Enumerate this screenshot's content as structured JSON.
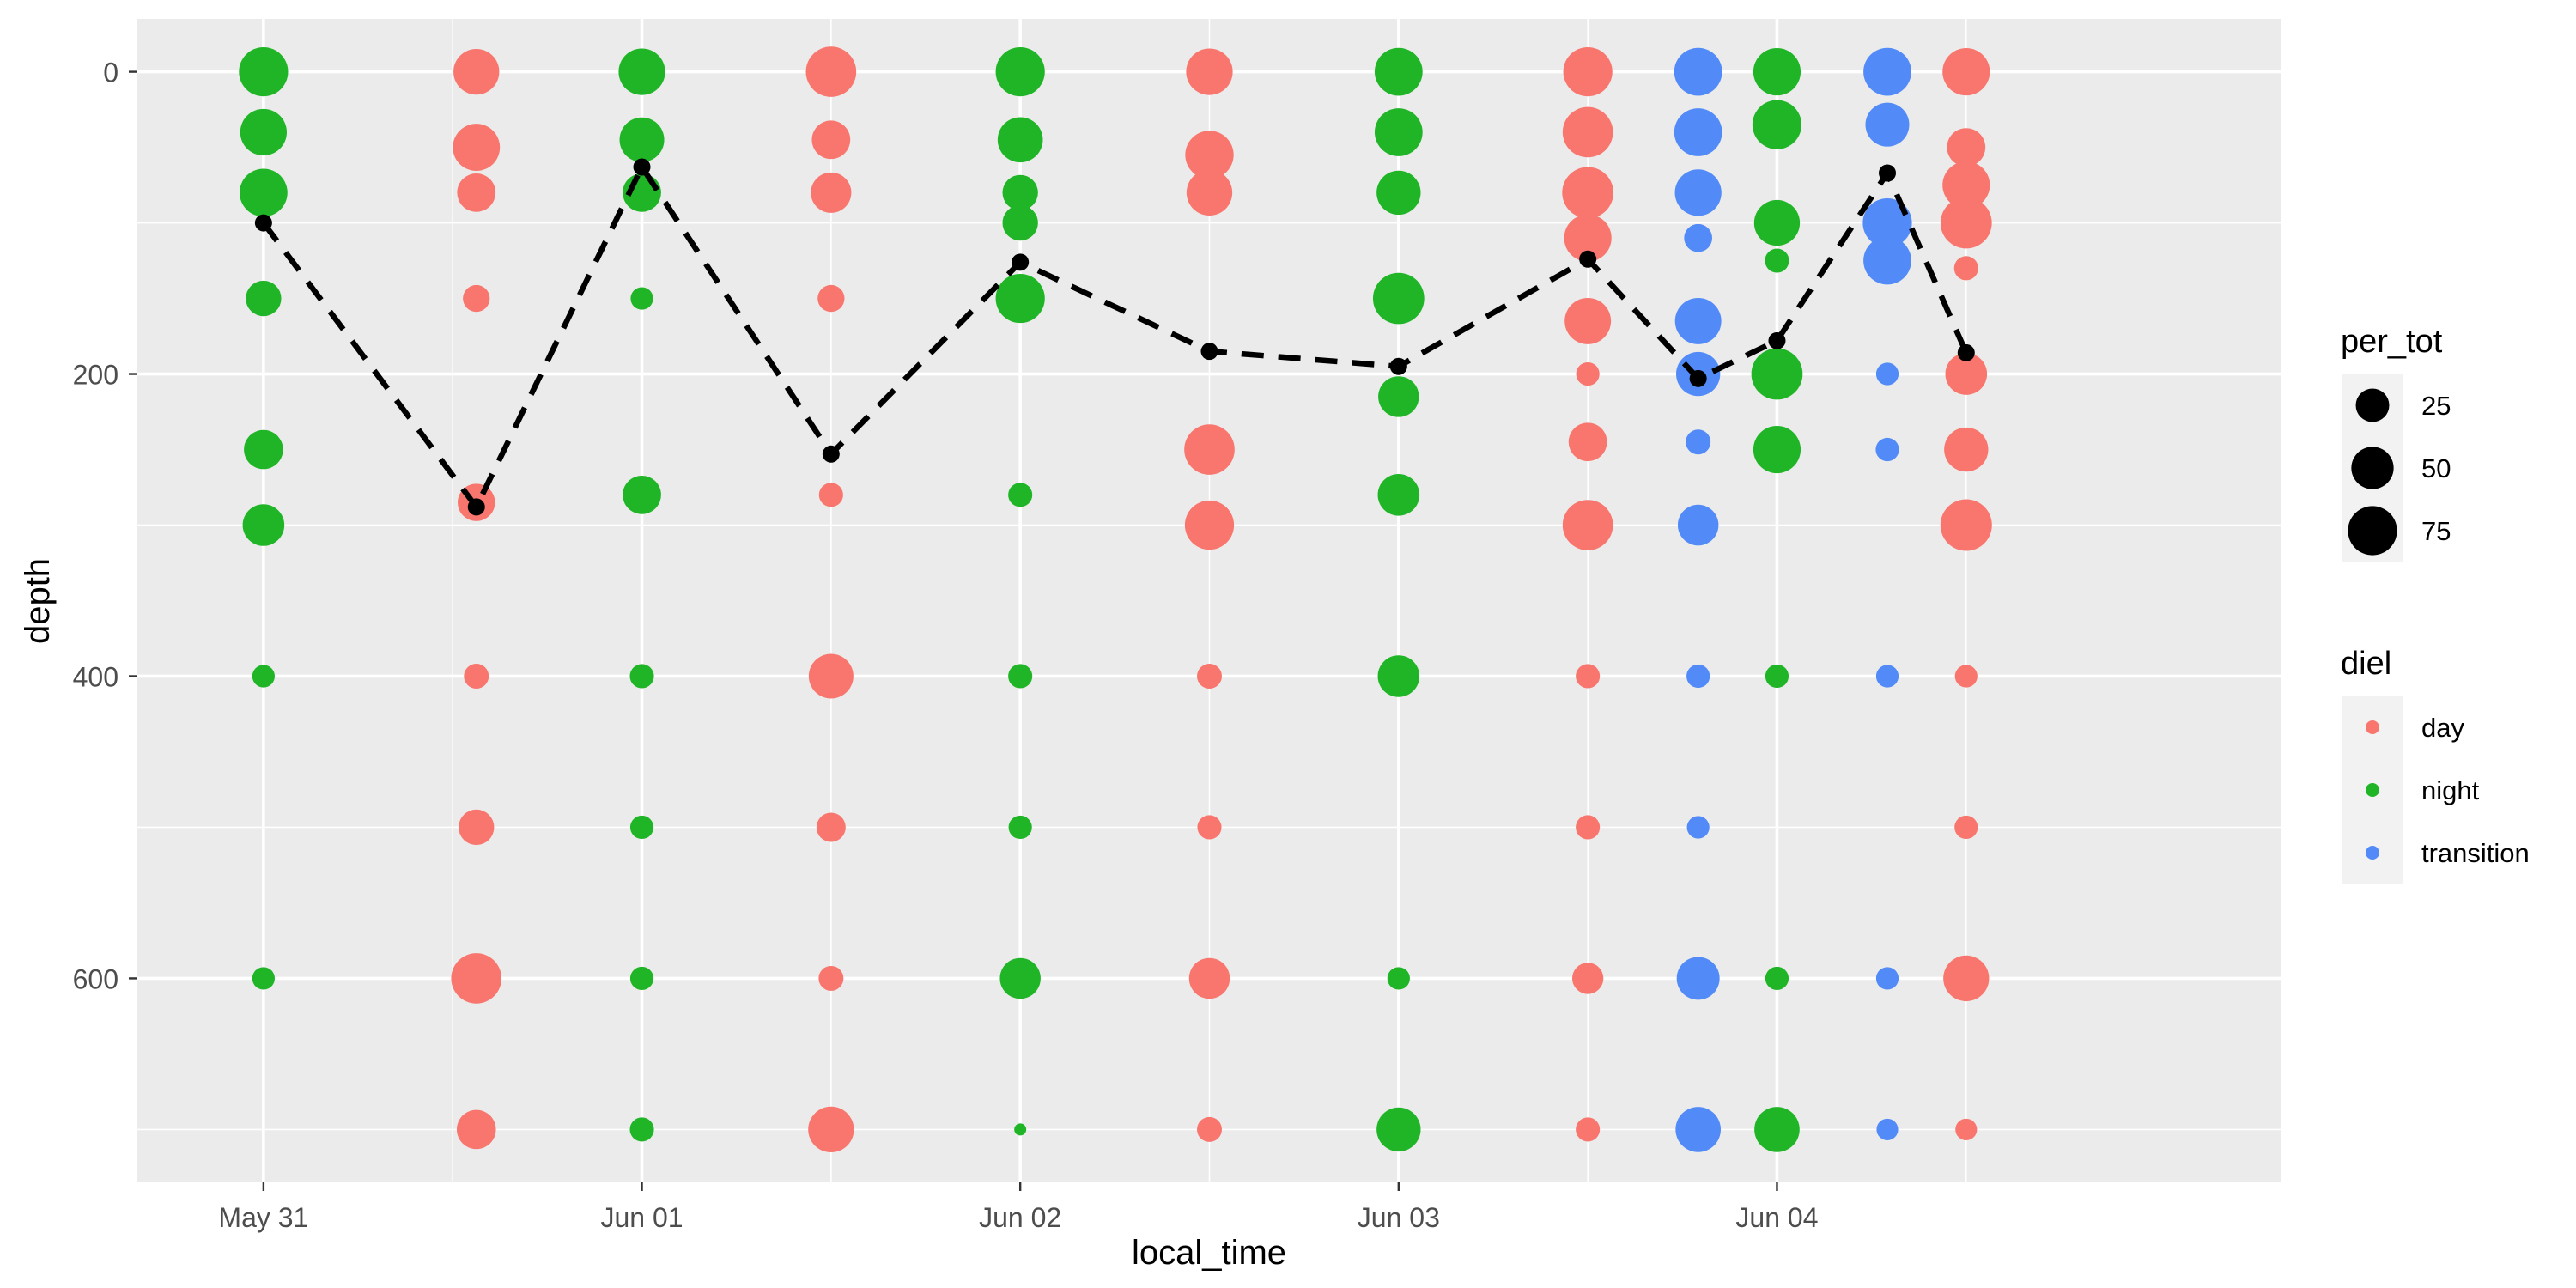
{
  "chart_data": {
    "type": "scatter",
    "xlabel": "local_time",
    "ylabel": "depth",
    "x_ticks": [
      "May 31",
      "Jun 01",
      "Jun 02",
      "Jun 03",
      "Jun 04"
    ],
    "x_tick_values": [
      "2023-05-31",
      "2023-06-01",
      "2023-06-02",
      "2023-06-03",
      "2023-06-04"
    ],
    "xlim": [
      "2023-05-30T16:00",
      "2023-06-05T08:00"
    ],
    "y_ticks": [
      0,
      200,
      400,
      600
    ],
    "ylim": [
      -35,
      735
    ],
    "y_reversed": true,
    "grid": true,
    "size_legend": {
      "title": "per_tot",
      "breaks": [
        25,
        50,
        75
      ]
    },
    "color_legend": {
      "title": "diel",
      "entries": [
        "day",
        "night",
        "transition"
      ]
    },
    "colors": {
      "day": "#F8766D",
      "night": "#1FB526",
      "transition": "#528BF7"
    },
    "casts": [
      {
        "time": "2023-05-31T00:00",
        "diel": "night",
        "points": [
          [
            0,
            75
          ],
          [
            40,
            65
          ],
          [
            80,
            70
          ],
          [
            150,
            30
          ],
          [
            250,
            40
          ],
          [
            300,
            48
          ],
          [
            400,
            6
          ],
          [
            600,
            6
          ]
        ]
      },
      {
        "time": "2023-05-31T13:30",
        "diel": "day",
        "points": [
          [
            0,
            62
          ],
          [
            50,
            67
          ],
          [
            80,
            38
          ],
          [
            150,
            12
          ],
          [
            285,
            35
          ],
          [
            400,
            9
          ],
          [
            500,
            30
          ],
          [
            600,
            80
          ],
          [
            700,
            40
          ]
        ]
      },
      {
        "time": "2023-06-01T00:00",
        "diel": "night",
        "points": [
          [
            0,
            65
          ],
          [
            45,
            58
          ],
          [
            80,
            38
          ],
          [
            150,
            6
          ],
          [
            280,
            38
          ],
          [
            400,
            8
          ],
          [
            500,
            7
          ],
          [
            600,
            7
          ],
          [
            700,
            8
          ]
        ]
      },
      {
        "time": "2023-06-01T12:00",
        "diel": "day",
        "points": [
          [
            0,
            80
          ],
          [
            45,
            38
          ],
          [
            80,
            44
          ],
          [
            150,
            12
          ],
          [
            280,
            8
          ],
          [
            400,
            58
          ],
          [
            500,
            16
          ],
          [
            600,
            9
          ],
          [
            700,
            62
          ]
        ]
      },
      {
        "time": "2023-06-02T00:00",
        "diel": "night",
        "points": [
          [
            0,
            75
          ],
          [
            45,
            60
          ],
          [
            80,
            30
          ],
          [
            100,
            30
          ],
          [
            150,
            75
          ],
          [
            280,
            8
          ],
          [
            400,
            8
          ],
          [
            500,
            7
          ],
          [
            600,
            45
          ],
          [
            700,
            0
          ]
        ]
      },
      {
        "time": "2023-06-02T12:00",
        "diel": "day",
        "points": [
          [
            0,
            65
          ],
          [
            55,
            72
          ],
          [
            80,
            62
          ],
          [
            250,
            80
          ],
          [
            300,
            75
          ],
          [
            400,
            9
          ],
          [
            500,
            8
          ],
          [
            600,
            45
          ],
          [
            700,
            9
          ]
        ]
      },
      {
        "time": "2023-06-03T00:00",
        "diel": "night",
        "points": [
          [
            0,
            70
          ],
          [
            40,
            70
          ],
          [
            80,
            56
          ],
          [
            150,
            84
          ],
          [
            215,
            45
          ],
          [
            280,
            48
          ],
          [
            400,
            48
          ],
          [
            600,
            6
          ],
          [
            700,
            56
          ]
        ]
      },
      {
        "time": "2023-06-03T12:00",
        "diel": "day",
        "points": [
          [
            0,
            75
          ],
          [
            40,
            80
          ],
          [
            80,
            84
          ],
          [
            110,
            68
          ],
          [
            165,
            64
          ],
          [
            200,
            7
          ],
          [
            245,
            38
          ],
          [
            300,
            80
          ],
          [
            400,
            8
          ],
          [
            500,
            8
          ],
          [
            600,
            20
          ],
          [
            700,
            8
          ]
        ]
      },
      {
        "time": "2023-06-03T19:00",
        "diel": "transition",
        "points": [
          [
            0,
            70
          ],
          [
            40,
            70
          ],
          [
            80,
            65
          ],
          [
            110,
            14
          ],
          [
            165,
            64
          ],
          [
            200,
            56
          ],
          [
            245,
            9
          ],
          [
            300,
            45
          ],
          [
            400,
            7
          ],
          [
            500,
            6
          ],
          [
            600,
            52
          ],
          [
            700,
            60
          ]
        ]
      },
      {
        "time": "2023-06-04T00:00",
        "diel": "night",
        "points": [
          [
            0,
            68
          ],
          [
            35,
            75
          ],
          [
            100,
            62
          ],
          [
            125,
            8
          ],
          [
            200,
            84
          ],
          [
            250,
            68
          ],
          [
            400,
            7
          ],
          [
            600,
            7
          ],
          [
            700,
            60
          ]
        ]
      },
      {
        "time": "2023-06-04T07:00",
        "diel": "transition",
        "points": [
          [
            0,
            70
          ],
          [
            35,
            55
          ],
          [
            100,
            75
          ],
          [
            125,
            70
          ],
          [
            200,
            6
          ],
          [
            250,
            7
          ],
          [
            400,
            6
          ],
          [
            600,
            6
          ],
          [
            700,
            5
          ]
        ]
      },
      {
        "time": "2023-06-04T12:00",
        "diel": "day",
        "points": [
          [
            0,
            68
          ],
          [
            50,
            38
          ],
          [
            75,
            68
          ],
          [
            100,
            84
          ],
          [
            130,
            8
          ],
          [
            200,
            48
          ],
          [
            250,
            56
          ],
          [
            300,
            85
          ],
          [
            400,
            6
          ],
          [
            500,
            7
          ],
          [
            600,
            62
          ],
          [
            700,
            5
          ]
        ]
      }
    ],
    "mean_line": {
      "style": "dashed",
      "color": "#000000",
      "points": [
        [
          "2023-05-31T00:00",
          100
        ],
        [
          "2023-05-31T13:30",
          288
        ],
        [
          "2023-06-01T00:00",
          63
        ],
        [
          "2023-06-01T12:00",
          253
        ],
        [
          "2023-06-02T00:00",
          126
        ],
        [
          "2023-06-02T12:00",
          185
        ],
        [
          "2023-06-03T00:00",
          195
        ],
        [
          "2023-06-03T12:00",
          124
        ],
        [
          "2023-06-03T19:00",
          203
        ],
        [
          "2023-06-04T00:00",
          178
        ],
        [
          "2023-06-04T07:00",
          67
        ],
        [
          "2023-06-04T12:00",
          186
        ]
      ]
    }
  }
}
